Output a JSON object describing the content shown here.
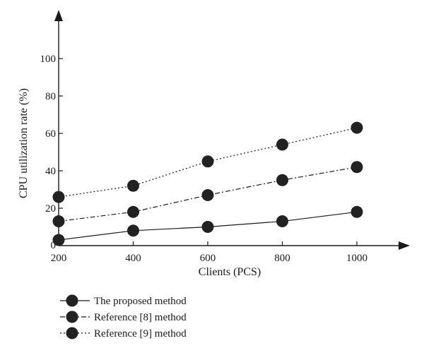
{
  "chart_data": {
    "type": "line",
    "xlabel": "Clients (PCS)",
    "ylabel": "CPU utilization rate (%)",
    "x": [
      200,
      400,
      600,
      800,
      1000
    ],
    "xlim": [
      200,
      1150
    ],
    "ylim": [
      0,
      120
    ],
    "xticks": [
      "200",
      "400",
      "600",
      "800",
      "1000"
    ],
    "yticks": [
      "0",
      "20",
      "40",
      "60",
      "80",
      "100"
    ],
    "grid": false,
    "legend_position": "bottom-left",
    "series": [
      {
        "name": "The proposed method",
        "values": [
          3,
          8,
          10,
          13,
          18
        ],
        "line_style": "solid"
      },
      {
        "name": "Reference [8] method",
        "values": [
          13,
          18,
          27,
          35,
          42
        ],
        "line_style": "dash-dot"
      },
      {
        "name": "Reference [9] method",
        "values": [
          26,
          32,
          45,
          54,
          63
        ],
        "line_style": "dotted"
      }
    ],
    "colors": {
      "line": "#1a1a1a",
      "marker": "#222222"
    }
  }
}
